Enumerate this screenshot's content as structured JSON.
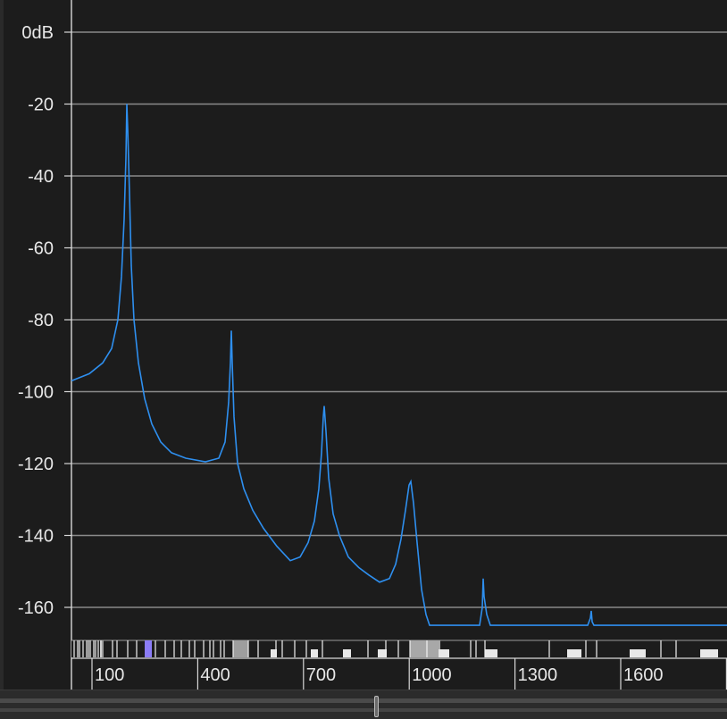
{
  "chart_data": {
    "type": "line",
    "title": "",
    "xlabel": "",
    "ylabel": "",
    "x_ticks": [
      "100",
      "400",
      "700",
      "1000",
      "1300",
      "1600"
    ],
    "y_ticks": [
      "0dB",
      "-20",
      "-40",
      "-60",
      "-80",
      "-100",
      "-120",
      "-140",
      "-160"
    ],
    "ylim": [
      -166,
      8
    ],
    "grid": true,
    "series": [
      {
        "color": "#2e8fef",
        "points": [
          [
            0,
            -97
          ],
          [
            20,
            -95
          ],
          [
            35,
            -92
          ],
          [
            45,
            -88
          ],
          [
            52,
            -80
          ],
          [
            56,
            -68
          ],
          [
            59,
            -52
          ],
          [
            61,
            -35
          ],
          [
            62,
            -20
          ],
          [
            63,
            -27
          ],
          [
            65,
            -45
          ],
          [
            67,
            -65
          ],
          [
            70,
            -80
          ],
          [
            75,
            -92
          ],
          [
            82,
            -102
          ],
          [
            90,
            -109
          ],
          [
            100,
            -114
          ],
          [
            112,
            -117
          ],
          [
            128,
            -118.5
          ],
          [
            150,
            -119.5
          ],
          [
            165,
            -118.5
          ],
          [
            172,
            -114
          ],
          [
            176,
            -103
          ],
          [
            178,
            -92
          ],
          [
            179,
            -83
          ],
          [
            180,
            -92
          ],
          [
            182,
            -107
          ],
          [
            186,
            -120
          ],
          [
            193,
            -127
          ],
          [
            203,
            -133
          ],
          [
            215,
            -138
          ],
          [
            230,
            -143
          ],
          [
            245,
            -147
          ],
          [
            256,
            -146
          ],
          [
            265,
            -142
          ],
          [
            272,
            -136
          ],
          [
            277,
            -127
          ],
          [
            280,
            -117
          ],
          [
            282,
            -107
          ],
          [
            283,
            -104
          ],
          [
            285,
            -111
          ],
          [
            288,
            -124
          ],
          [
            293,
            -134
          ],
          [
            300,
            -140
          ],
          [
            310,
            -146
          ],
          [
            322,
            -149
          ],
          [
            333,
            -151
          ],
          [
            345,
            -153
          ],
          [
            356,
            -152
          ],
          [
            363,
            -148
          ],
          [
            369,
            -141
          ],
          [
            374,
            -133
          ],
          [
            378,
            -126
          ],
          [
            380,
            -125
          ],
          [
            383,
            -131
          ],
          [
            387,
            -142
          ],
          [
            392,
            -155
          ],
          [
            397,
            -162
          ],
          [
            401,
            -165
          ],
          [
            408,
            -165
          ],
          [
            430,
            -165
          ],
          [
            457,
            -165
          ],
          [
            460,
            -160
          ],
          [
            461,
            -152
          ],
          [
            462,
            -157
          ],
          [
            465,
            -162
          ],
          [
            469,
            -165
          ],
          [
            500,
            -165
          ],
          [
            578,
            -165
          ],
          [
            581,
            -163
          ],
          [
            582,
            -161
          ],
          [
            583,
            -164
          ],
          [
            585,
            -165
          ],
          [
            750,
            -165
          ],
          [
            950,
            -165
          ],
          [
            1150,
            -165
          ],
          [
            1350,
            -165
          ],
          [
            1550,
            -165
          ],
          [
            1750,
            -165
          ],
          [
            1900,
            -165
          ]
        ]
      }
    ]
  },
  "range_strip": {
    "minor_marks": [
      83,
      87,
      89,
      93,
      97,
      99,
      101,
      105,
      107,
      110,
      113,
      126,
      131,
      143,
      153,
      174,
      185,
      195,
      203,
      212,
      218,
      228,
      235,
      239,
      247,
      251,
      261,
      278,
      289,
      309,
      316,
      330,
      343,
      361,
      412,
      432,
      446,
      459,
      478,
      527,
      533,
      543,
      615,
      656,
      668,
      740,
      757
    ],
    "grey_blocks": [
      {
        "from": 112,
        "to": 116,
        "shade": "#9a9a9a"
      },
      {
        "from": 261,
        "to": 278,
        "shade": "#9e9e9e"
      },
      {
        "from": 459,
        "to": 493,
        "shade": "#a8a8a8"
      }
    ],
    "white_blocks": [
      {
        "from": 303,
        "to": 310
      },
      {
        "from": 348,
        "to": 356
      },
      {
        "from": 384,
        "to": 393
      },
      {
        "from": 423,
        "to": 433
      },
      {
        "from": 491,
        "to": 503
      },
      {
        "from": 543,
        "to": 557
      },
      {
        "from": 635,
        "to": 651
      },
      {
        "from": 705,
        "to": 723
      },
      {
        "from": 784,
        "to": 804
      }
    ],
    "highlight": {
      "from": 162,
      "to": 170,
      "color": "#8b7cf6"
    }
  },
  "colors": {
    "background": "#1c1c1c",
    "grid": "#8a8a8a",
    "axis": "#d8d8d8",
    "line": "#2e8fef"
  }
}
